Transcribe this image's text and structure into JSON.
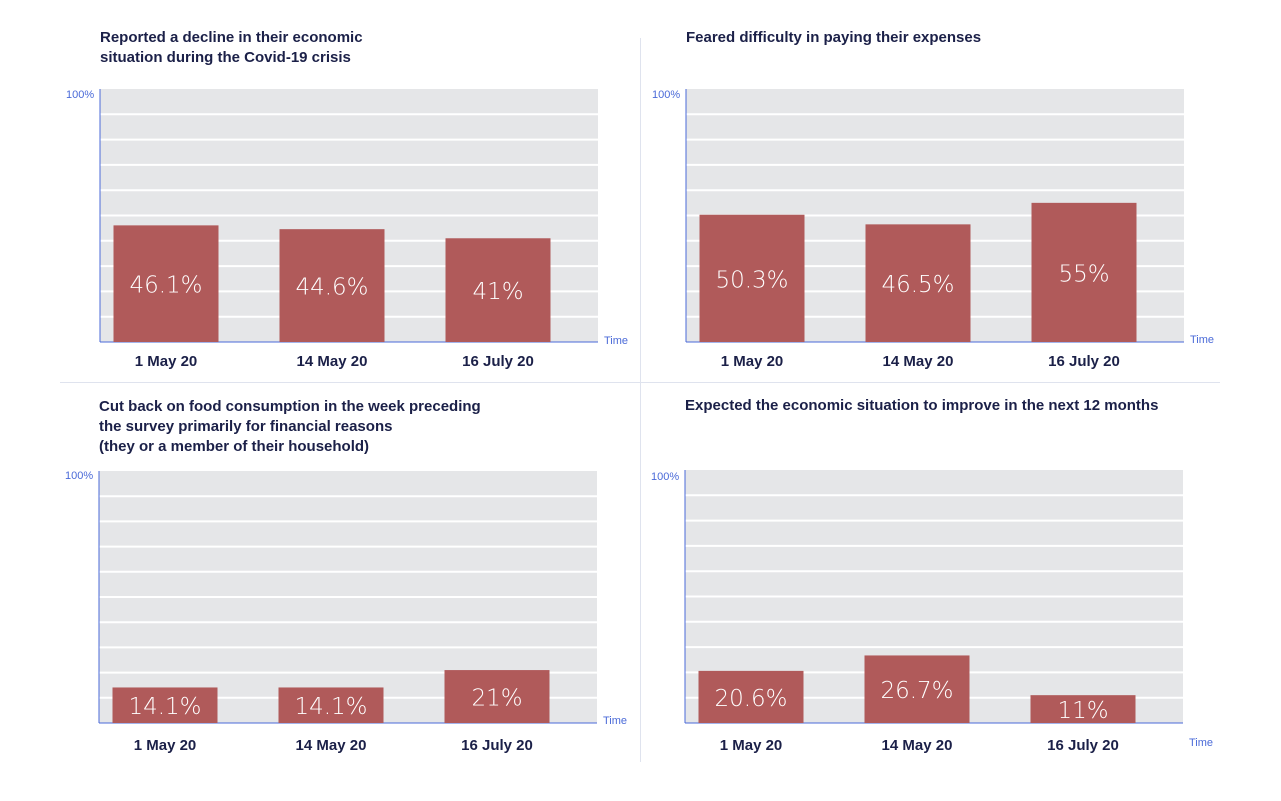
{
  "chart_data": [
    {
      "type": "bar",
      "title": "Reported a decline in their economic\nsituation during the Covid-19 crisis",
      "categories": [
        "1 May 20",
        "14 May 20",
        "16 July 20"
      ],
      "values": [
        46.1,
        44.6,
        41
      ],
      "value_labels": [
        "46.1%",
        "44.6%",
        "41%"
      ],
      "ymax_label": "100%",
      "xlabel": "Time",
      "ylim": [
        0,
        100
      ],
      "grid": true
    },
    {
      "type": "bar",
      "title": "Feared difficulty in paying their expenses",
      "categories": [
        "1 May 20",
        "14 May 20",
        "16 July 20"
      ],
      "values": [
        50.3,
        46.5,
        55
      ],
      "value_labels": [
        "50.3%",
        "46.5%",
        "55%"
      ],
      "ymax_label": "100%",
      "xlabel": "Time",
      "ylim": [
        0,
        100
      ],
      "grid": true
    },
    {
      "type": "bar",
      "title": "Cut back on food consumption in the week preceding\nthe survey primarily for financial reasons\n(they or a member of their household)",
      "categories": [
        "1 May 20",
        "14 May 20",
        "16 July 20"
      ],
      "values": [
        14.1,
        14.1,
        21
      ],
      "value_labels": [
        "14.1%",
        "14.1%",
        "21%"
      ],
      "ymax_label": "100%",
      "xlabel": "Time",
      "ylim": [
        0,
        100
      ],
      "grid": true
    },
    {
      "type": "bar",
      "title": "Expected the economic situation to improve in the next 12 months",
      "categories": [
        "1 May 20",
        "14 May 20",
        "16 July 20"
      ],
      "values": [
        20.6,
        26.7,
        11
      ],
      "value_labels": [
        "20.6%",
        "26.7%",
        "11%"
      ],
      "ymax_label": "100%",
      "xlabel": "Time",
      "ylim": [
        0,
        100
      ],
      "grid": true
    }
  ],
  "colors": {
    "bar": "#b05a5a",
    "plot_background": "#e5e6e8",
    "gridline": "#ffffff",
    "axis": "#4a6ad8",
    "title_text": "#1b2048"
  }
}
